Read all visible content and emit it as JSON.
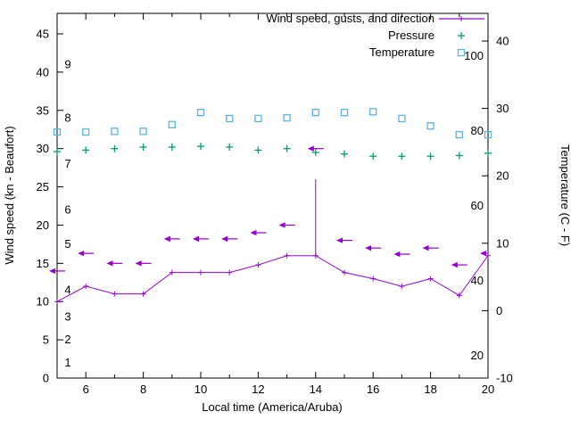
{
  "chart_data": {
    "type": "line",
    "title": "",
    "xlabel": "Local time (America/Aruba)",
    "ylabel_left": "Wind speed (kn - Beaufort)",
    "ylabel_right": "Temperature (C - F)",
    "x_range": [
      5,
      20
    ],
    "x_hours": [
      5,
      6,
      7,
      8,
      9,
      10,
      11,
      12,
      13,
      14,
      15,
      16,
      17,
      18,
      19,
      20
    ],
    "x_tick_labels": [
      6,
      8,
      10,
      12,
      14,
      16,
      18,
      20
    ],
    "left_axis": {
      "unit": "kn",
      "ticks": [
        0,
        5,
        10,
        15,
        20,
        25,
        30,
        35,
        40,
        45
      ],
      "range": [
        0,
        47.7
      ]
    },
    "right_axis": {
      "unit": "C",
      "ticks": [
        -10,
        0,
        10,
        20,
        30,
        40
      ],
      "range": [
        -10,
        44.1
      ]
    },
    "beaufort_scale_labels": [
      {
        "beaufort": 1,
        "kn": 2
      },
      {
        "beaufort": 2,
        "kn": 5
      },
      {
        "beaufort": 3,
        "kn": 8
      },
      {
        "beaufort": 4,
        "kn": 11.5
      },
      {
        "beaufort": 5,
        "kn": 17.5
      },
      {
        "beaufort": 6,
        "kn": 22
      },
      {
        "beaufort": 7,
        "kn": 28
      },
      {
        "beaufort": 8,
        "kn": 34
      },
      {
        "beaufort": 9,
        "kn": 41
      }
    ],
    "fahrenheit_scale_labels": [
      20,
      40,
      60,
      80,
      100
    ],
    "grid": false,
    "legend_position": "top-right-inside",
    "series": [
      {
        "name": "Wind speed, gusts, and direction",
        "color": "#9400d3",
        "type": "wind",
        "arrow_points_direction": "left",
        "wind_speed_kn": [
          10,
          12,
          11,
          11,
          13.8,
          13.8,
          13.8,
          14.8,
          16,
          16,
          13.8,
          13,
          12,
          13,
          10.8,
          16
        ],
        "wind_gust_kn": [
          10,
          12,
          11,
          11,
          13.8,
          13.8,
          13.8,
          14.8,
          16,
          26,
          13.8,
          13,
          12,
          13,
          10.8,
          16
        ],
        "direction_marker_kn": [
          14,
          16.3,
          15,
          15,
          18.2,
          18.2,
          18.2,
          19,
          20,
          30,
          18,
          17,
          16.2,
          17,
          14.8,
          16.3
        ]
      },
      {
        "name": "Pressure",
        "color": "#009e73",
        "type": "points",
        "marker": "plus",
        "values_left_scale": [
          29.6,
          29.8,
          30.0,
          30.2,
          30.2,
          30.3,
          30.2,
          29.8,
          30.0,
          29.5,
          29.3,
          29.0,
          29.0,
          29.0,
          29.1,
          29.4
        ]
      },
      {
        "name": "Temperature",
        "color": "#56b4e9",
        "type": "points",
        "marker": "open-square",
        "values_c": [
          26.5,
          26.5,
          26.6,
          26.6,
          27.6,
          29.4,
          28.5,
          28.5,
          28.6,
          29.4,
          29.4,
          29.5,
          28.5,
          27.4,
          26.1,
          26.1
        ]
      }
    ]
  }
}
